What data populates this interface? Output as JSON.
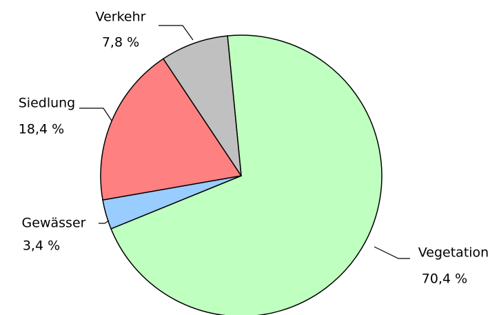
{
  "chart_data": {
    "type": "pie",
    "categories": [
      "Vegetation",
      "Gewässer",
      "Siedlung",
      "Verkehr"
    ],
    "values": [
      70.4,
      3.4,
      18.4,
      7.8
    ],
    "value_labels": [
      "70,4 %",
      "3,4 %",
      "18,4 %",
      "7,8 %"
    ],
    "colors": [
      "#bfffbf",
      "#99ccff",
      "#ff8080",
      "#c0c0c0"
    ]
  }
}
